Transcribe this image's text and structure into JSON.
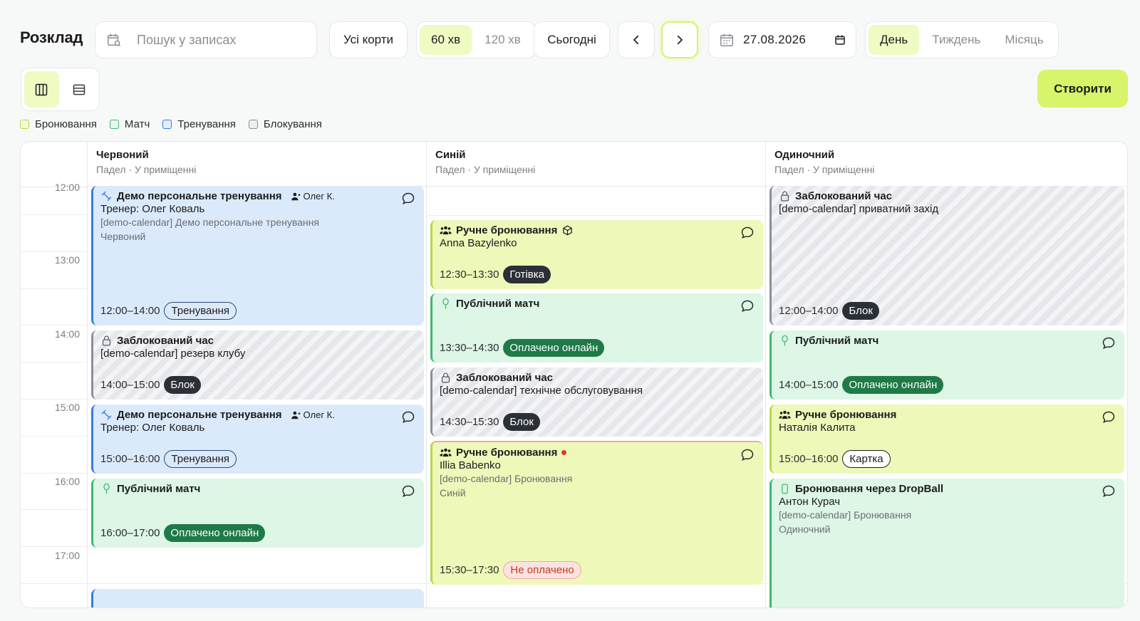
{
  "header": {
    "title": "Розклад",
    "search_placeholder": "Пошук у записах",
    "courts_filter": "Усі корти",
    "durations": [
      "60 хв",
      "120 хв"
    ],
    "active_duration": "60 хв",
    "today": "Сьогодні",
    "date": "27.08.2026",
    "views": [
      "День",
      "Тиждень",
      "Місяць"
    ],
    "active_view": "День",
    "create": "Створити"
  },
  "legend": [
    {
      "label": "Бронювання",
      "color": "#b6d84a"
    },
    {
      "label": "Матч",
      "color": "#3fb870"
    },
    {
      "label": "Тренування",
      "color": "#3b7be0"
    },
    {
      "label": "Блокування",
      "color": "#8a8f99"
    }
  ],
  "courts": [
    {
      "name": "Червоний",
      "sub": "Падел · У приміщенні"
    },
    {
      "name": "Синій",
      "sub": "Падел · У приміщенні"
    },
    {
      "name": "Одиночний",
      "sub": "Падел · У приміщенні"
    }
  ],
  "time_labels": [
    "12:00",
    "13:00",
    "14:00",
    "15:00",
    "16:00",
    "17:00"
  ],
  "events": {
    "red1": {
      "title": "Демо персональне тренування",
      "trainer": "Олег К.",
      "line2": "Тренер: Олег Коваль",
      "meta1": "[demo-calendar] Демо персональне тренування",
      "meta2": "Червоний",
      "time": "12:00–14:00",
      "badge": "Тренування"
    },
    "red2": {
      "title": "Заблокований час",
      "line2": "[demo-calendar] резерв клубу",
      "time": "14:00–15:00",
      "badge": "Блок"
    },
    "red3": {
      "title": "Демо персональне тренування",
      "trainer": "Олег К.",
      "line2": "Тренер: Олег Коваль",
      "time": "15:00–16:00",
      "badge": "Тренування"
    },
    "red4": {
      "title": "Публічний матч",
      "time": "16:00–17:00",
      "badge": "Оплачено онлайн"
    },
    "blue1": {
      "title": "Ручне бронювання",
      "line2": "Anna Bazylenko",
      "time": "12:30–13:30",
      "badge": "Готівка"
    },
    "blue2": {
      "title": "Публічний матч",
      "time": "13:30–14:30",
      "badge": "Оплачено онлайн"
    },
    "blue3": {
      "title": "Заблокований час",
      "line2": "[demo-calendar] технічне обслуговування",
      "time": "14:30–15:30",
      "badge": "Блок"
    },
    "blue4": {
      "title": "Ручне бронювання",
      "line2": "Illia Babenko",
      "meta1": "[demo-calendar] Бронювання",
      "meta2": "Синій",
      "time": "15:30–17:30",
      "badge": "Не оплачено"
    },
    "single1": {
      "title": "Заблокований час",
      "line2": "[demo-calendar] приватний захід",
      "time": "12:00–14:00",
      "badge": "Блок"
    },
    "single2": {
      "title": "Публічний матч",
      "time": "14:00–15:00",
      "badge": "Оплачено онлайн"
    },
    "single3": {
      "title": "Ручне бронювання",
      "line2": "Наталія Калита",
      "time": "15:00–16:00",
      "badge": "Картка"
    },
    "single4": {
      "title": "Бронювання через DropBall",
      "line2": "Антон Курач",
      "meta1": "[demo-calendar] Бронювання",
      "meta2": "Одиночний"
    }
  }
}
